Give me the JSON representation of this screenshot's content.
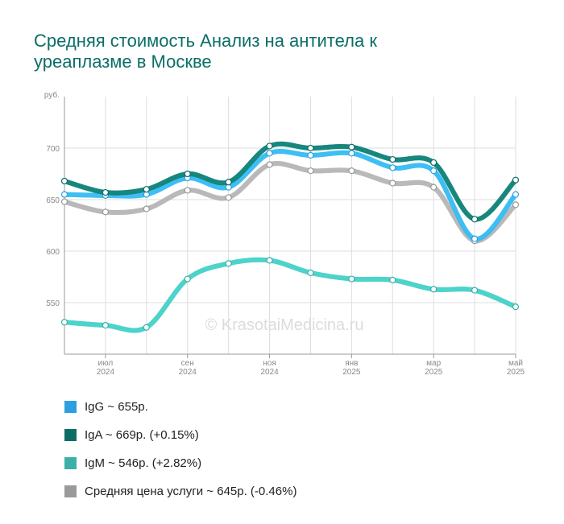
{
  "chart_data": {
    "type": "line",
    "title": "Средняя стоимость Анализ на антитела к уреаплазме в Москве",
    "y_label": "руб.",
    "watermark": "© KrasotaiMedicina.ru",
    "categories": [
      null,
      "июл 2024",
      null,
      "сен 2024",
      null,
      "ноя 2024",
      null,
      "янв 2025",
      null,
      "мар 2025",
      null,
      "май 2025"
    ],
    "ylim": [
      500,
      750
    ],
    "yticks": [
      550,
      600,
      650,
      700
    ],
    "grid": true,
    "series": [
      {
        "name": "IgG ~ 655р.",
        "color": "#2d9fe0",
        "values": [
          655,
          654,
          655,
          671,
          662,
          695,
          693,
          695,
          681,
          678,
          612,
          655
        ]
      },
      {
        "name": "IgA ~ 669р. (+0.15%)",
        "color": "#0b6e66",
        "values": [
          668,
          657,
          660,
          675,
          667,
          702,
          700,
          701,
          689,
          686,
          631,
          669
        ]
      },
      {
        "name": "IgM ~ 546р. (+2.82%)",
        "color": "#3ab0a8",
        "values": [
          531,
          528,
          526,
          573,
          588,
          591,
          579,
          573,
          572,
          563,
          562,
          546
        ]
      },
      {
        "name": "Средняя цена услуги ~ 645р. (-0.46%)",
        "color": "#9a9a9a",
        "values": [
          648,
          638,
          641,
          659,
          652,
          684,
          678,
          678,
          666,
          662,
          610,
          645
        ]
      }
    ]
  }
}
